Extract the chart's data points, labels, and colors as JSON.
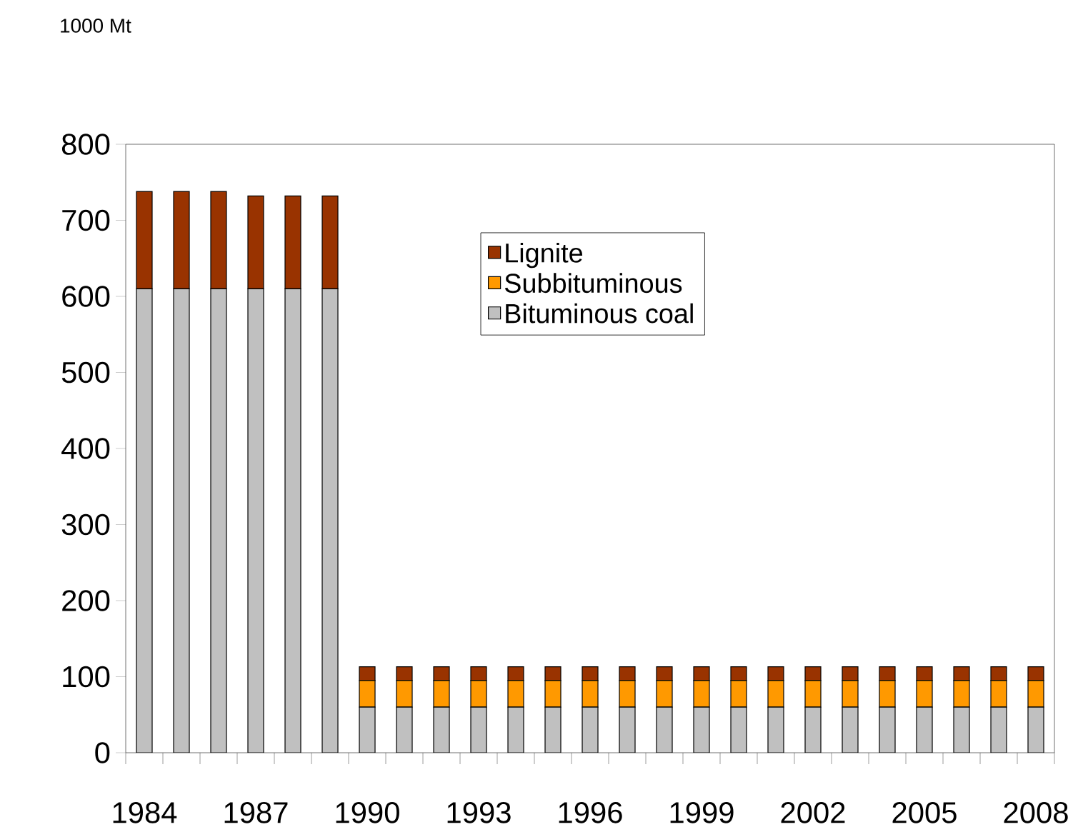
{
  "chart_data": {
    "type": "bar",
    "stacked": true,
    "annotations": [
      "1000 Mt"
    ],
    "categories": [
      "1984",
      null,
      null,
      "1987",
      null,
      null,
      "1990",
      null,
      null,
      "1993",
      null,
      null,
      "1996",
      null,
      null,
      "1999",
      null,
      null,
      "2002",
      null,
      null,
      "2005",
      null,
      null,
      "2008"
    ],
    "series": [
      {
        "name": "Bituminous coal",
        "color": "#c0c0c0",
        "values": [
          610,
          610,
          610,
          610,
          610,
          610,
          60,
          60,
          60,
          60,
          60,
          60,
          60,
          60,
          60,
          60,
          60,
          60,
          60,
          60,
          60,
          60,
          60,
          60,
          60
        ]
      },
      {
        "name": "Subbituminous",
        "color": "#ff9900",
        "values": [
          0,
          0,
          0,
          0,
          0,
          0,
          35,
          35,
          35,
          35,
          35,
          35,
          35,
          35,
          35,
          35,
          35,
          35,
          35,
          35,
          35,
          35,
          35,
          35,
          35
        ]
      },
      {
        "name": "Lignite",
        "color": "#993300",
        "values": [
          128,
          128,
          128,
          122,
          122,
          122,
          18,
          18,
          18,
          18,
          18,
          18,
          18,
          18,
          18,
          18,
          18,
          18,
          18,
          18,
          18,
          18,
          18,
          18,
          18
        ]
      }
    ],
    "ylim": [
      0,
      800
    ],
    "yticks": [
      0,
      100,
      200,
      300,
      400,
      500,
      600,
      700,
      800
    ],
    "legend": "top right"
  }
}
